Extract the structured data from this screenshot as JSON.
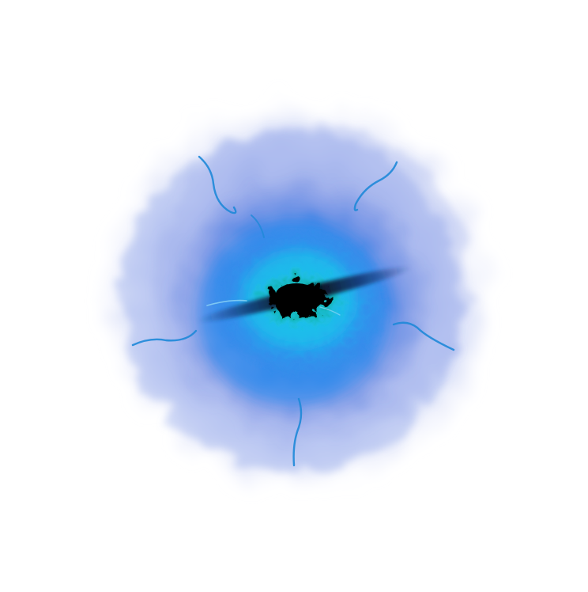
{
  "scene": {
    "subject": "blue-energy-burst",
    "colors": {
      "background": "#ffffff",
      "outer_haze": "#8fa3e8",
      "mid_glow": "#3d7fe6",
      "inner_glow": "#1fa6e8",
      "teal_ring": "#1fc9a8",
      "core": "#000000",
      "tendril": "#1e88d8"
    }
  }
}
